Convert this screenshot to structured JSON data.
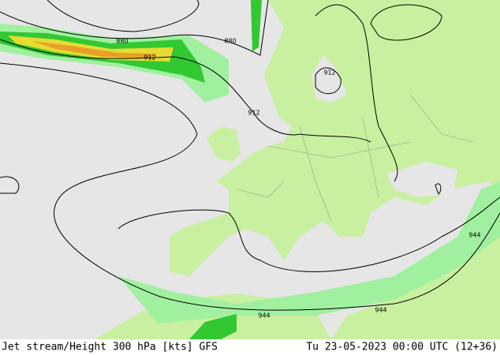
{
  "footer": {
    "product": "Jet stream/Height 300 hPa [kts] GFS",
    "valid_time": "Tu 23-05-2023 00:00 UTC (12+36)"
  },
  "contour_labels": [
    "880",
    "880",
    "912",
    "912",
    "912",
    "944",
    "944",
    "944"
  ]
}
